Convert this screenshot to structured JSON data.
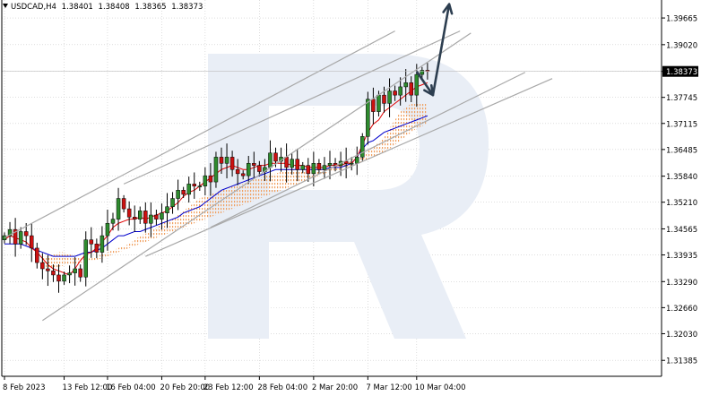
{
  "header": {
    "symbol": "USDCAD,H4",
    "open": "1.38401",
    "high": "1.38408",
    "low": "1.38365",
    "close": "1.38373"
  },
  "colors": {
    "bull": "#2e8b2e",
    "bear": "#cc1111",
    "tenkan": "#e00000",
    "kijun": "#0000cc",
    "cloud": "#f0a060",
    "channel": "#a8a8a8",
    "arrow": "#2d3e50",
    "watermark": "#e9eef6",
    "price_tag_bg": "#000000"
  },
  "icons": {
    "menu": "triangle-down-icon",
    "watermark": "rb-logo-watermark"
  },
  "chart_data": {
    "type": "candlestick",
    "title": "USDCAD,H4",
    "last_price": 1.38373,
    "ylim": [
      1.31,
      1.401
    ],
    "y_ticks": [
      "1.39665",
      "1.39020",
      "1.38373",
      "1.37745",
      "1.37115",
      "1.36485",
      "1.35840",
      "1.35210",
      "1.34565",
      "1.33935",
      "1.33290",
      "1.32660",
      "1.32030",
      "1.31385"
    ],
    "y_tick_values": [
      1.39665,
      1.3902,
      1.38373,
      1.37745,
      1.37115,
      1.36485,
      1.3584,
      1.3521,
      1.34565,
      1.33935,
      1.3329,
      1.3266,
      1.3203,
      1.31385
    ],
    "x_ticks": [
      "8 Feb 2023",
      "13 Feb 12:00",
      "16 Feb 04:00",
      "20 Feb 20:00",
      "23 Feb 12:00",
      "28 Feb 04:00",
      "2 Mar 20:00",
      "7 Mar 12:00",
      "10 Mar 04:00"
    ],
    "x_tick_index": [
      0,
      11,
      19,
      29,
      37,
      47,
      57,
      67,
      76
    ],
    "grid": true,
    "candles_count": 79,
    "closes": [
      1.344,
      1.3455,
      1.342,
      1.345,
      1.344,
      1.341,
      1.3375,
      1.336,
      1.3355,
      1.3345,
      1.333,
      1.3345,
      1.335,
      1.336,
      1.334,
      1.343,
      1.342,
      1.34,
      1.344,
      1.347,
      1.348,
      1.353,
      1.3505,
      1.3485,
      1.348,
      1.35,
      1.347,
      1.349,
      1.348,
      1.3495,
      1.351,
      1.353,
      1.355,
      1.354,
      1.3565,
      1.356,
      1.356,
      1.3585,
      1.357,
      1.363,
      1.3615,
      1.363,
      1.36,
      1.359,
      1.3585,
      1.3615,
      1.361,
      1.3595,
      1.3605,
      1.364,
      1.362,
      1.363,
      1.3605,
      1.3625,
      1.36,
      1.361,
      1.359,
      1.3615,
      1.36,
      1.361,
      1.3615,
      1.361,
      1.362,
      1.3615,
      1.3615,
      1.363,
      1.368,
      1.377,
      1.374,
      1.378,
      1.376,
      1.379,
      1.378,
      1.38,
      1.381,
      1.378,
      1.383,
      1.384,
      1.38373
    ],
    "tenkan": [
      1.343,
      1.344,
      1.3435,
      1.343,
      1.3425,
      1.341,
      1.34,
      1.3385,
      1.337,
      1.336,
      1.3355,
      1.335,
      1.3345,
      1.336,
      1.338,
      1.3395,
      1.34,
      1.341,
      1.3425,
      1.344,
      1.346,
      1.347,
      1.3475,
      1.348,
      1.348,
      1.3485,
      1.348,
      1.3485,
      1.349,
      1.3495,
      1.35,
      1.351,
      1.352,
      1.3535,
      1.3545,
      1.355,
      1.356,
      1.357,
      1.358,
      1.359,
      1.36,
      1.3605,
      1.361,
      1.3605,
      1.36,
      1.36,
      1.3605,
      1.361,
      1.361,
      1.3615,
      1.3615,
      1.3615,
      1.3615,
      1.361,
      1.361,
      1.361,
      1.3605,
      1.3605,
      1.3605,
      1.3605,
      1.361,
      1.361,
      1.361,
      1.3615,
      1.3615,
      1.363,
      1.366,
      1.369,
      1.371,
      1.372,
      1.374,
      1.375,
      1.376,
      1.377,
      1.378,
      1.379,
      1.38,
      1.3805,
      1.381
    ],
    "kijun": [
      1.342,
      1.342,
      1.342,
      1.342,
      1.3415,
      1.341,
      1.3405,
      1.34,
      1.3395,
      1.339,
      1.339,
      1.339,
      1.339,
      1.339,
      1.3395,
      1.34,
      1.34,
      1.3405,
      1.341,
      1.342,
      1.343,
      1.344,
      1.344,
      1.3445,
      1.345,
      1.345,
      1.3455,
      1.346,
      1.3465,
      1.347,
      1.3475,
      1.348,
      1.3485,
      1.3495,
      1.35,
      1.3505,
      1.351,
      1.352,
      1.353,
      1.354,
      1.355,
      1.3555,
      1.356,
      1.3565,
      1.357,
      1.3575,
      1.358,
      1.3585,
      1.359,
      1.3595,
      1.36,
      1.36,
      1.36,
      1.36,
      1.36,
      1.36,
      1.36,
      1.36,
      1.36,
      1.36,
      1.3605,
      1.3605,
      1.3605,
      1.361,
      1.3615,
      1.363,
      1.365,
      1.3665,
      1.367,
      1.368,
      1.369,
      1.3695,
      1.37,
      1.3705,
      1.371,
      1.3715,
      1.372,
      1.3725,
      1.373
    ],
    "cloud_top": [
      1.339,
      1.339,
      1.3395,
      1.34,
      1.34,
      1.3395,
      1.339,
      1.3385,
      1.3385,
      1.3385,
      1.339,
      1.3395,
      1.34,
      1.3405,
      1.341,
      1.3415,
      1.342,
      1.343,
      1.344,
      1.3445,
      1.345,
      1.346,
      1.347,
      1.3475,
      1.348,
      1.349,
      1.35,
      1.351,
      1.352,
      1.353,
      1.3535,
      1.354,
      1.3545,
      1.355,
      1.3555,
      1.356,
      1.3565,
      1.3565,
      1.357,
      1.3575,
      1.358,
      1.3585,
      1.359,
      1.359,
      1.3595,
      1.36,
      1.36,
      1.36,
      1.3595,
      1.3595,
      1.3595,
      1.36,
      1.36,
      1.3605,
      1.361,
      1.3615,
      1.362,
      1.3625,
      1.363,
      1.3635,
      1.3645,
      1.3655,
      1.3665,
      1.368,
      1.37,
      1.372,
      1.374,
      1.375,
      1.376,
      1.376,
      1.376,
      1.376
    ],
    "cloud_bottom": [
      1.336,
      1.336,
      1.3362,
      1.3365,
      1.3368,
      1.337,
      1.3372,
      1.3375,
      1.3378,
      1.338,
      1.3382,
      1.3385,
      1.339,
      1.3395,
      1.34,
      1.3405,
      1.341,
      1.3415,
      1.342,
      1.3425,
      1.343,
      1.3435,
      1.344,
      1.3445,
      1.345,
      1.3455,
      1.346,
      1.3465,
      1.347,
      1.3475,
      1.348,
      1.3485,
      1.349,
      1.3495,
      1.35,
      1.3505,
      1.351,
      1.3515,
      1.352,
      1.3525,
      1.353,
      1.3535,
      1.354,
      1.3545,
      1.355,
      1.3555,
      1.356,
      1.3565,
      1.357,
      1.3575,
      1.358,
      1.3585,
      1.359,
      1.3595,
      1.3598,
      1.36,
      1.3605,
      1.361,
      1.3615,
      1.362,
      1.3625,
      1.363,
      1.3635,
      1.364,
      1.365,
      1.366,
      1.367,
      1.368,
      1.369,
      1.37,
      1.3705,
      1.371
    ],
    "channels": [
      {
        "from": [
          0,
          1.3435
        ],
        "to": [
          72,
          1.3935
        ]
      },
      {
        "from": [
          22,
          1.3565
        ],
        "to": [
          84,
          1.3935
        ]
      },
      {
        "from": [
          7,
          1.3235
        ],
        "to": [
          86,
          1.393
        ]
      },
      {
        "from": [
          38,
          1.346
        ],
        "to": [
          96,
          1.3835
        ]
      },
      {
        "from": [
          26,
          1.339
        ],
        "to": [
          101,
          1.382
        ]
      }
    ],
    "forecast_arrow": [
      [
        76,
        1.38373
      ],
      [
        79,
        1.378
      ],
      [
        82,
        1.4
      ]
    ]
  }
}
